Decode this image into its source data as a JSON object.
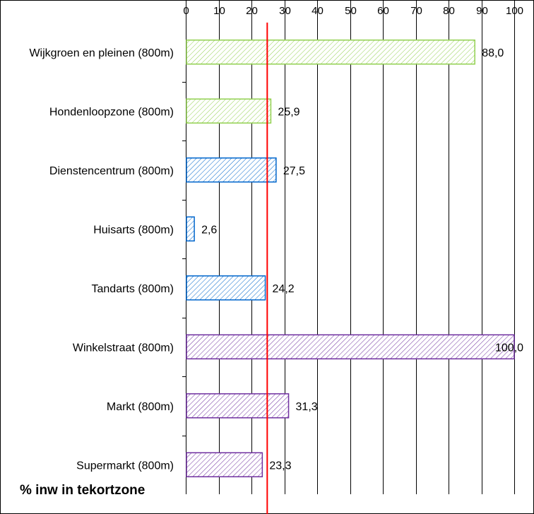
{
  "chart_data": {
    "type": "bar",
    "orientation": "horizontal",
    "categories": [
      "Wijkgroen en pleinen (800m)",
      "Hondenloopzone (800m)",
      "Dienstencentrum (800m)",
      "Huisarts (800m)",
      "Tandarts (800m)",
      "Winkelstraat (800m)",
      "Markt (800m)",
      "Supermarkt (800m)"
    ],
    "values": [
      88.0,
      25.9,
      27.5,
      2.6,
      24.2,
      100.0,
      31.3,
      23.3
    ],
    "value_labels": [
      "88,0",
      "25,9",
      "27,5",
      "2,6",
      "24,2",
      "100,0",
      "31,3",
      "23,3"
    ],
    "bar_groups": [
      "green",
      "green",
      "blue",
      "blue",
      "blue",
      "purple",
      "purple",
      "purple"
    ],
    "x_ticks": [
      "0",
      "10",
      "20",
      "30",
      "40",
      "50",
      "60",
      "70",
      "80",
      "90",
      "100"
    ],
    "xlim": [
      0,
      100
    ],
    "reference_line": 24.8,
    "footer_label": "% inw in tekortzone",
    "grid": "vertical",
    "legend": "none",
    "colors": {
      "green": "#92d050",
      "blue": "#0066cc",
      "purple": "#7030a0",
      "reference": "#ff0000",
      "grid": "#000000"
    }
  }
}
